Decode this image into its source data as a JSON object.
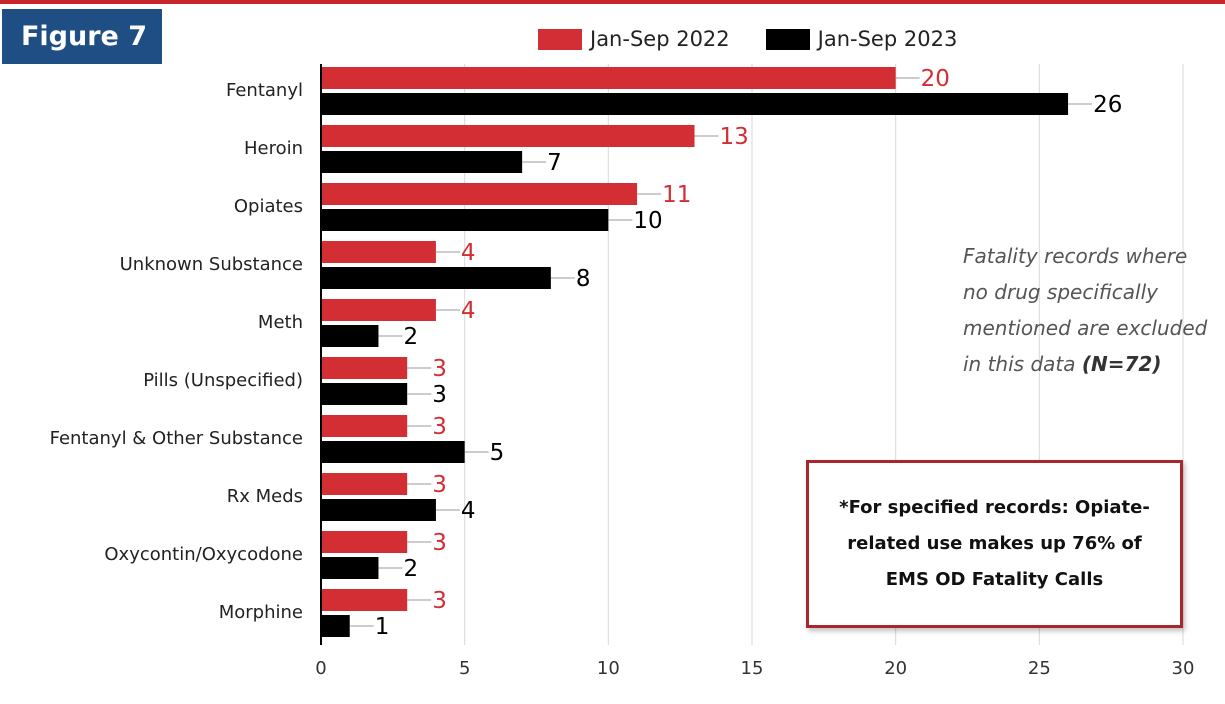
{
  "figure_label": "Figure 7",
  "note": {
    "text": "Fatality records where no drug specifically mentioned are excluded in this data",
    "emphasis": "(N=72)"
  },
  "callout": {
    "text": "*For specified records: Opiate-related use makes up 76% of EMS OD Fatality Calls"
  },
  "colors": {
    "accent_red": "#d42e35",
    "bar_black": "#000000",
    "figure_label_bg": "#1f4e85",
    "callout_border": "#a8262c"
  },
  "chart_data": {
    "type": "bar",
    "orientation": "horizontal",
    "categories": [
      "Fentanyl",
      "Heroin",
      "Opiates",
      "Unknown Substance",
      "Meth",
      "Pills (Unspecified)",
      "Fentanyl & Other Substance",
      "Rx Meds",
      "Oxycontin/Oxycodone",
      "Morphine"
    ],
    "series": [
      {
        "name": "Jan-Sep 2022",
        "color": "#d42e35",
        "values": [
          20,
          13,
          11,
          4,
          4,
          3,
          3,
          3,
          3,
          3
        ]
      },
      {
        "name": "Jan-Sep 2023",
        "color": "#000000",
        "values": [
          26,
          7,
          10,
          8,
          2,
          3,
          5,
          4,
          2,
          1
        ]
      }
    ],
    "xlim": [
      0,
      30
    ],
    "xticks": [
      0,
      5,
      10,
      15,
      20,
      25,
      30
    ],
    "grid": "vertical",
    "legend": "top"
  }
}
